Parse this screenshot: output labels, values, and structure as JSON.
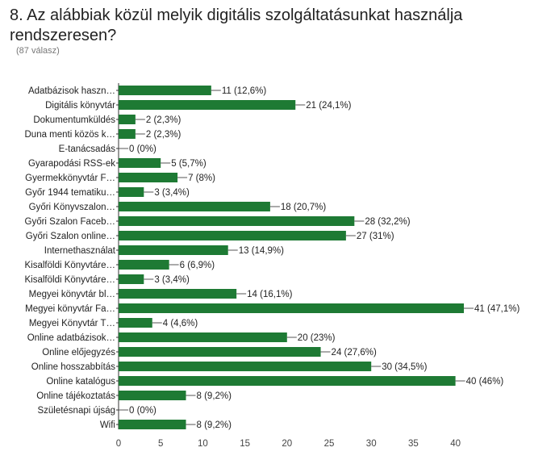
{
  "question": {
    "title": "8. Az alábbiak közül melyik digitális szolgáltatásunkat használja rendszeresen?",
    "response_count": "(87 válasz)"
  },
  "colors": {
    "bar": "#1e7a34",
    "axis": "#333333",
    "text": "#222222"
  },
  "chart_data": {
    "type": "bar",
    "orientation": "horizontal",
    "categories": [
      "Adatbázisok haszn…",
      "Digitális könyvtár",
      "Dokumentumküldés",
      "Duna menti közös k…",
      "E-tanácsadás",
      "Gyarapodási RSS-ek",
      "Gyermekkönyvtár F…",
      "Győr 1944 tematiku…",
      "Győri Könyvszalon…",
      "Győri Szalon Faceb…",
      "Győri Szalon online…",
      "Internethasználat",
      "Kisalföldi Könyvtáre…",
      "Kisalföldi Könyvtáre…",
      "Megyei könyvtár bl…",
      "Megyei könyvtár Fa…",
      "Megyei Könyvtár T…",
      "Online adatbázisok…",
      "Online előjegyzés",
      "Online hosszabbítás",
      "Online katalógus",
      "Online tájékoztatás",
      "Születésnapi újság",
      "Wifi"
    ],
    "values": [
      11,
      21,
      2,
      2,
      0,
      5,
      7,
      3,
      18,
      28,
      27,
      13,
      6,
      3,
      14,
      41,
      4,
      20,
      24,
      30,
      40,
      8,
      0,
      8
    ],
    "value_labels": [
      "11 (12,6%)",
      "21 (24,1%)",
      "2 (2,3%)",
      "2 (2,3%)",
      "0 (0%)",
      "5 (5,7%)",
      "7 (8%)",
      "3 (3,4%)",
      "18 (20,7%)",
      "28 (32,2%)",
      "27 (31%)",
      "13 (14,9%)",
      "6 (6,9%)",
      "3 (3,4%)",
      "14 (16,1%)",
      "41 (47,1%)",
      "4 (4,6%)",
      "20 (23%)",
      "24 (27,6%)",
      "30 (34,5%)",
      "40 (46%)",
      "8 (9,2%)",
      "0 (0%)",
      "8 (9,2%)"
    ],
    "xticks": [
      0,
      5,
      10,
      15,
      20,
      25,
      30,
      35,
      40
    ],
    "xlim": [
      0,
      41
    ],
    "grid": false
  }
}
